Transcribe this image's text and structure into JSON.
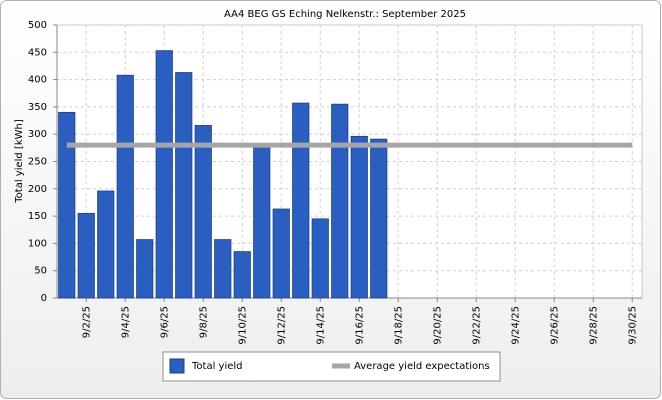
{
  "chart_data": {
    "type": "bar",
    "title": "AA4 BEG GS Eching Nelkenstr.: September 2025",
    "y_label": "Total yield [kWh]",
    "categories": [
      null,
      "9/2/25",
      null,
      "9/4/25",
      null,
      "9/6/25",
      null,
      "9/8/25",
      null,
      "9/10/25",
      null,
      "9/12/25",
      null,
      "9/14/25",
      null,
      "9/16/25",
      null,
      "9/18/25",
      null,
      "9/20/25",
      null,
      "9/22/25",
      null,
      "9/24/25",
      null,
      "9/26/25",
      null,
      "9/28/25",
      null,
      "9/30/25"
    ],
    "series": [
      {
        "name": "Total yield",
        "type": "bar",
        "color": "#2a5fc1",
        "values": [
          340,
          155,
          196,
          408,
          107,
          453,
          413,
          316,
          107,
          85,
          278,
          163,
          357,
          145,
          355,
          296,
          291,
          null,
          null,
          null,
          null,
          null,
          null,
          null,
          null,
          null,
          null,
          null,
          null,
          null
        ]
      },
      {
        "name": "Average yield expectations",
        "type": "line",
        "color": "#a6a6a6",
        "values": [
          280,
          280,
          280,
          280,
          280,
          280,
          280,
          280,
          280,
          280,
          280,
          280,
          280,
          280,
          280,
          280,
          280,
          280,
          280,
          280,
          280,
          280,
          280,
          280,
          280,
          280,
          280,
          280,
          280,
          280
        ]
      }
    ],
    "ylim": [
      0,
      500
    ],
    "yticks": [
      0,
      50,
      100,
      150,
      200,
      250,
      300,
      350,
      400,
      450,
      500
    ],
    "grid": true,
    "legend": "bottom"
  }
}
